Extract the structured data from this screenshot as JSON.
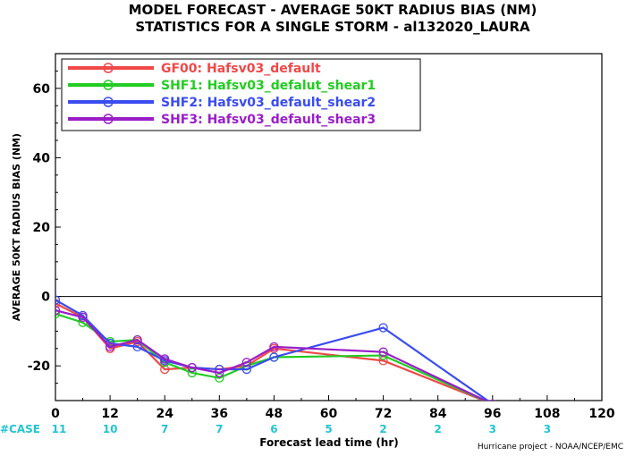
{
  "chart_data": {
    "type": "line",
    "title_line1": "MODEL FORECAST - AVERAGE 50KT RADIUS BIAS (NM)",
    "title_line2": "STATISTICS FOR A SINGLE STORM - al132020_LAURA",
    "xlabel": "Forecast lead time (hr)",
    "ylabel": "AVERAGE 50KT RADIUS BIAS (NM)",
    "credit": "Hurricane project - NOAA/NCEP/EMC",
    "xlim": [
      0,
      120
    ],
    "ylim": [
      -30,
      70
    ],
    "xticks": [
      0,
      12,
      24,
      36,
      48,
      60,
      72,
      84,
      96,
      108,
      120
    ],
    "yticks": [
      -20,
      0,
      20,
      40,
      60
    ],
    "zero_line": true,
    "legend_position": "top-left",
    "case_label": "#CASE",
    "case_counts": [
      {
        "x": 0,
        "n": "11"
      },
      {
        "x": 12,
        "n": "10"
      },
      {
        "x": 24,
        "n": "7"
      },
      {
        "x": 36,
        "n": "7"
      },
      {
        "x": 48,
        "n": "6"
      },
      {
        "x": 60,
        "n": "5"
      },
      {
        "x": 72,
        "n": "2"
      },
      {
        "x": 84,
        "n": "2"
      },
      {
        "x": 96,
        "n": "3"
      },
      {
        "x": 108,
        "n": "3"
      }
    ],
    "series": [
      {
        "name": "GF00: Hafsv03_default",
        "color": "#f04848",
        "points": [
          [
            0,
            -2
          ],
          [
            6,
            -6
          ],
          [
            12,
            -15
          ],
          [
            18,
            -13
          ],
          [
            24,
            -21
          ],
          [
            30,
            -20.5
          ],
          [
            36,
            -21
          ],
          [
            42,
            -20
          ],
          [
            48,
            -15
          ],
          [
            72,
            -18.5
          ],
          [
            96,
            -31
          ]
        ]
      },
      {
        "name": "SHF1: Hafsv03_defalut_shear1",
        "color": "#22cc22",
        "points": [
          [
            0,
            -5
          ],
          [
            6,
            -7.5
          ],
          [
            12,
            -13
          ],
          [
            18,
            -12.5
          ],
          [
            24,
            -19
          ],
          [
            30,
            -22
          ],
          [
            36,
            -23.5
          ],
          [
            42,
            -20
          ],
          [
            48,
            -17.5
          ],
          [
            72,
            -17
          ],
          [
            96,
            -31
          ]
        ]
      },
      {
        "name": "SHF2: Hafsv03_default_shear2",
        "color": "#3a4cf0",
        "points": [
          [
            0,
            -1
          ],
          [
            6,
            -5.5
          ],
          [
            12,
            -13.5
          ],
          [
            18,
            -14.5
          ],
          [
            24,
            -18.5
          ],
          [
            30,
            -20.5
          ],
          [
            36,
            -21
          ],
          [
            42,
            -21
          ],
          [
            48,
            -17.5
          ],
          [
            72,
            -9
          ],
          [
            96,
            -31
          ]
        ]
      },
      {
        "name": "SHF3: Hafsv03_default_shear3",
        "color": "#9a1ec8",
        "points": [
          [
            0,
            -4
          ],
          [
            6,
            -6
          ],
          [
            12,
            -14.5
          ],
          [
            18,
            -12.5
          ],
          [
            24,
            -18
          ],
          [
            30,
            -20.5
          ],
          [
            36,
            -22
          ],
          [
            42,
            -19
          ],
          [
            48,
            -14.5
          ],
          [
            72,
            -16
          ],
          [
            96,
            -31
          ]
        ]
      }
    ]
  }
}
